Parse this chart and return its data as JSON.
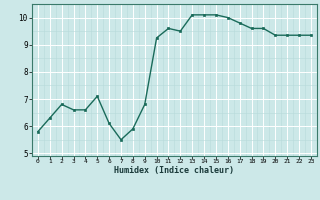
{
  "x": [
    0,
    1,
    2,
    3,
    4,
    5,
    6,
    7,
    8,
    9,
    10,
    11,
    12,
    13,
    14,
    15,
    16,
    17,
    18,
    19,
    20,
    21,
    22,
    23
  ],
  "y": [
    5.8,
    6.3,
    6.8,
    6.6,
    6.6,
    7.1,
    6.1,
    5.5,
    5.9,
    6.8,
    9.25,
    9.6,
    9.5,
    10.1,
    10.1,
    10.1,
    10.0,
    9.8,
    9.6,
    9.6,
    9.35,
    9.35,
    9.35,
    9.35
  ],
  "xlabel": "Humidex (Indice chaleur)",
  "ylim": [
    4.9,
    10.5
  ],
  "xlim": [
    -0.5,
    23.5
  ],
  "yticks": [
    5,
    6,
    7,
    8,
    9,
    10
  ],
  "xticks": [
    0,
    1,
    2,
    3,
    4,
    5,
    6,
    7,
    8,
    9,
    10,
    11,
    12,
    13,
    14,
    15,
    16,
    17,
    18,
    19,
    20,
    21,
    22,
    23
  ],
  "line_color": "#1a6b5a",
  "marker_color": "#1a6b5a",
  "bg_color": "#cce8e8",
  "grid_major_color": "#ffffff",
  "grid_minor_color": "#b8dada"
}
